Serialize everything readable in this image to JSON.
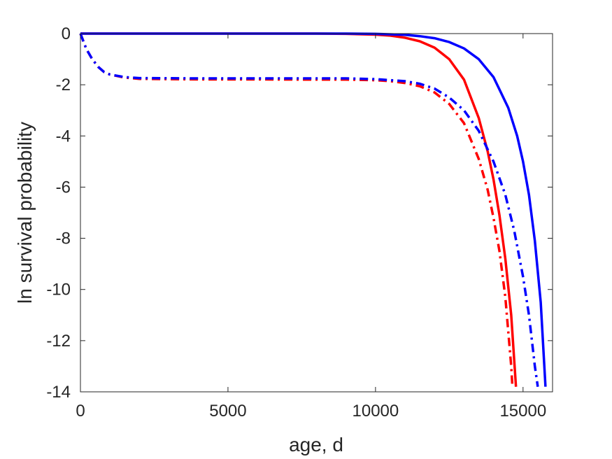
{
  "chart_data": {
    "type": "line",
    "title": "",
    "xlabel": "age, d",
    "ylabel": "ln survival probability",
    "xlim": [
      0,
      16000
    ],
    "ylim": [
      -14,
      0
    ],
    "xticks": [
      0,
      5000,
      10000,
      15000
    ],
    "xtick_labels": [
      "0",
      "5000",
      "10000",
      "15000"
    ],
    "yticks": [
      0,
      -2,
      -4,
      -6,
      -8,
      -10,
      -12,
      -14
    ],
    "ytick_labels": [
      "0",
      "-2",
      "-4",
      "-6",
      "-8",
      "-10",
      "-12",
      "-14"
    ],
    "grid": false,
    "legend": "none",
    "series": [
      {
        "color": "#ff0000",
        "style": "solid",
        "x": [
          0,
          2000,
          4000,
          6000,
          8000,
          9000,
          10000,
          10500,
          11000,
          11500,
          12000,
          12500,
          13000,
          13500,
          13800,
          14000,
          14200,
          14400,
          14600,
          14760
        ],
        "y": [
          0,
          0,
          0,
          0,
          0,
          -0.01,
          -0.04,
          -0.08,
          -0.16,
          -0.3,
          -0.55,
          -1.0,
          -1.8,
          -3.3,
          -4.6,
          -5.7,
          -7.1,
          -8.8,
          -11.0,
          -13.8
        ]
      },
      {
        "color": "#0000ff",
        "style": "solid",
        "x": [
          0,
          2000,
          4000,
          6000,
          8000,
          9000,
          10000,
          11000,
          11500,
          12000,
          12500,
          13000,
          13500,
          14000,
          14500,
          14800,
          15000,
          15200,
          15400,
          15600,
          15760
        ],
        "y": [
          0,
          0,
          0,
          0,
          0,
          0,
          -0.01,
          -0.05,
          -0.1,
          -0.18,
          -0.33,
          -0.58,
          -1.0,
          -1.7,
          -2.9,
          -4.0,
          -5.0,
          -6.3,
          -8.1,
          -10.5,
          -13.8
        ]
      },
      {
        "color": "#ff0000",
        "style": "dashdot",
        "x": [
          0,
          100,
          200,
          400,
          600,
          800,
          1000,
          1500,
          2000,
          4000,
          6000,
          8000,
          9000,
          10000,
          10500,
          11000,
          11500,
          12000,
          12500,
          13000,
          13500,
          13800,
          14000,
          14200,
          14400,
          14600,
          14640
        ],
        "y": [
          0,
          -0.3,
          -0.6,
          -1.0,
          -1.3,
          -1.5,
          -1.6,
          -1.72,
          -1.77,
          -1.79,
          -1.79,
          -1.8,
          -1.8,
          -1.82,
          -1.86,
          -1.93,
          -2.06,
          -2.3,
          -2.75,
          -3.5,
          -4.9,
          -6.1,
          -7.2,
          -8.5,
          -10.3,
          -13.0,
          -13.8
        ]
      },
      {
        "color": "#0000ff",
        "style": "dashdot",
        "x": [
          0,
          100,
          200,
          400,
          600,
          800,
          1000,
          1500,
          2000,
          4000,
          6000,
          8000,
          9000,
          10000,
          11000,
          11500,
          12000,
          12500,
          13000,
          13500,
          14000,
          14400,
          14700,
          15000,
          15200,
          15400,
          15500
        ],
        "y": [
          0,
          -0.3,
          -0.6,
          -1.0,
          -1.3,
          -1.5,
          -1.6,
          -1.7,
          -1.74,
          -1.75,
          -1.75,
          -1.75,
          -1.75,
          -1.78,
          -1.86,
          -1.96,
          -2.15,
          -2.5,
          -3.0,
          -3.8,
          -5.0,
          -6.3,
          -7.7,
          -9.5,
          -11.0,
          -13.0,
          -13.8
        ]
      }
    ]
  }
}
